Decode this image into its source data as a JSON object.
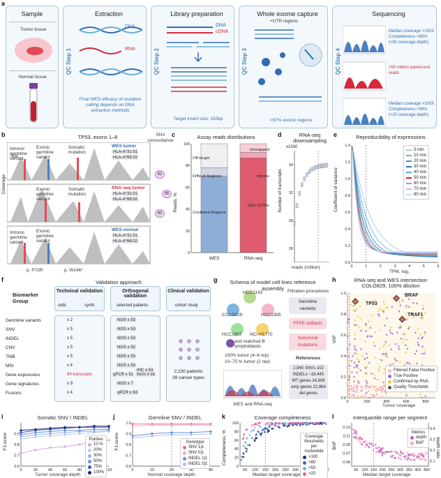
{
  "panel_labels": {
    "a": "a",
    "b": "b",
    "c": "c",
    "d": "d",
    "e": "e",
    "f": "f",
    "g": "g",
    "h": "h",
    "i": "i",
    "j": "j",
    "k": "k",
    "l": "l"
  },
  "a": {
    "sample_title": "Sample",
    "tumor_tissue": "Tumor tissue",
    "normal_tissue": "Normal tissue",
    "steps": [
      {
        "qc": "QC Step 1",
        "title": "Extraction",
        "dna": "DNA",
        "rna": "RNA",
        "note": "Final WES efficacy of mutation calling depends on DNA extraction methods"
      },
      {
        "qc": "QC Step 2",
        "title": "Library preparation",
        "dna": "DNA",
        "cdna": "cDNA",
        "note": "Target insert size: 150bp"
      },
      {
        "qc": "QC Step 3",
        "title": "Whole exome capture",
        "utr": "+UTR regions",
        "note": ">97% exonic regions"
      },
      {
        "qc": "QC Step 4",
        "title": "Sequencing",
        "seq1": "Median coverage >150X Completeness >85% (>60 coverage depth)",
        "seq2": ">50 million paired-end reads",
        "seq3": "Median coverage >100X Completeness >99% (>20 coverage depth)"
      }
    ]
  },
  "b": {
    "title": "TP53, exons 1–8",
    "snv_concordance": "SNV concordance",
    "ylabel": "Coverage",
    "tracks": [
      {
        "name": "WES tumor",
        "hla1": "HLA-A*31:01",
        "hla2": "HLA-A*68:02",
        "y1": "300",
        "y2": "0",
        "lbl_intronic": "Intronic germline variant",
        "lbl_exonic": "Exonic germline variant",
        "lbl_somatic": "Somatic mutation"
      },
      {
        "name": "RNA-seq tumor",
        "hla1": "HLA-A*31:01",
        "hla2": "HLA-A*68:02",
        "y1": "300",
        "y2": "0",
        "lbl_exonic": "Exonic germline variant",
        "lbl_somatic": "Somatic mutation"
      },
      {
        "name": "WES normal",
        "hla1": "HLA-A*31:01",
        "hla2": "HLA-A*68:02",
        "y1": "300",
        "y2": "0",
        "lbl_intronic": "Intronic germline variant",
        "lbl_exonic": "Exonic germline variant"
      }
    ],
    "concordance": [
      "92",
      "95",
      "90"
    ],
    "xlabels": [
      "p. P72R",
      "p. W146*"
    ]
  },
  "c": {
    "title": "Assay reads distributions",
    "ylabel": "Reads, %",
    "yticks": [
      "0",
      "20",
      "40",
      "60",
      "80",
      "100"
    ],
    "categories": [
      "WES",
      "RNA-seq"
    ],
    "wes_labels": [
      "Off-target",
      "Difficult Regions",
      "Confident Regions"
    ],
    "rna_labels": [
      "Unmapped",
      "Introns",
      "CDs +UTRs"
    ]
  },
  "d": {
    "title": "RNA-seq downsampling",
    "ylabel": "Number of transcripts",
    "xlabel": "reads (million)",
    "scale": "x1000",
    "yticks": [
      "28",
      "30",
      "32",
      "34"
    ],
    "xticks": [
      "10",
      "30",
      "50",
      "70"
    ]
  },
  "e": {
    "title": "Reproducibility of expressions",
    "ylabel": "Coefficient of variance",
    "xlabel": "TPM, log₂",
    "yticks": [
      "0.0",
      "0.2",
      "0.4",
      "0.6",
      "0.8",
      "1.0",
      "1.2",
      "1.4"
    ],
    "xticks": [
      "0",
      "1",
      "2",
      "3",
      "4",
      "5",
      "6"
    ],
    "legend": [
      {
        "name": "5 min",
        "color": "#9ecae1"
      },
      {
        "name": "10 min",
        "color": "#6baed6"
      },
      {
        "name": "20 min",
        "color": "#4292c6"
      },
      {
        "name": "30 min",
        "color": "#2171b5"
      },
      {
        "name": "40 min",
        "color": "#41b6c4"
      },
      {
        "name": "50 min",
        "color": "#e31a1c"
      },
      {
        "name": "60 min",
        "color": "#8c9fd8"
      },
      {
        "name": "70 min",
        "color": "#b3c6ef"
      },
      {
        "name": "80 min",
        "color": "#c6dbef"
      }
    ]
  },
  "f": {
    "title": "Validation approach",
    "biomarker": "Biomarker Group",
    "technical": "Technical validation",
    "orthogonal": "Orthogonal validation",
    "clinical": "Clinical validation",
    "cells": "cells",
    "synth": "synth.",
    "selected": "selected patients",
    "cohort": "cohort study",
    "biomarkers": [
      "Germline variants",
      "SNV",
      "INDEL",
      "CNV",
      "TMB",
      "MSI",
      "Gene expression",
      "Gene signatures",
      "Fusions"
    ],
    "tech_counts": [
      "x 2",
      "x 5",
      "x 5",
      "x 5",
      "x 5",
      "x 4",
      "89 transcripts",
      "x 9",
      "x 4"
    ],
    "tech_extra": [
      "x 2",
      "x 5"
    ],
    "ortho": [
      "NGS x 53",
      "NGS x 53",
      "NGS x 53",
      "NGS x 52",
      "NGS x 53",
      "NGS x 53",
      "qPCR x 51",
      "NGS x 55",
      "IHC x 53",
      "NGS x 7",
      "qPCR x 63"
    ],
    "patients": "2,230 patients",
    "cancer_types": "39 cancer types"
  },
  "g": {
    "title": "Schema of model cell lines reference assembly",
    "cells": [
      "HCC1143",
      "COLO829",
      "HCC1395",
      "HCC1937",
      "NCI-H1770"
    ],
    "matched": "and matched B lymphoblasts",
    "tumor1": "100% tumor (4–6 rep)",
    "tumor2": "10–75 % tumor (2 rep)",
    "wes_rna": "WES and RNA-seq",
    "filtration": "Filtration procedures",
    "filters": [
      "Germline variants",
      "FFPE artifacts",
      "Subclonal mutations"
    ],
    "references": "References",
    "refs": "2,940 SNVs 102 INDELs ~18,445 WT genes 24,608 amp genes 22,864 del genes"
  },
  "h": {
    "title": "RNA-seq and WES intersection COLO829, 100% dilution",
    "ylabel": "VAF",
    "xlabel": "Tumor coverage",
    "yticks": [
      "0.0",
      "0.2",
      "0.4",
      "0.6",
      "0.8",
      "1.0"
    ],
    "xticks": [
      "0",
      "200",
      "400",
      "600",
      "800"
    ],
    "genes": [
      "TP53",
      "BRAF",
      "TRAF1"
    ],
    "legend": [
      {
        "name": "Filtered False Positive",
        "color": "#f7b6c8"
      },
      {
        "name": "True Positive",
        "color": "#9a6bd3"
      },
      {
        "name": "Confirmed by RNA",
        "color": "#f4c542"
      },
      {
        "name": "Quality Thresholds",
        "color": "#555555"
      }
    ]
  },
  "i": {
    "title": "Somatic SNV / INDEL",
    "ylabel": "F1-score",
    "xlabel": "Tumor coverage depth",
    "yticks": [
      "0.6",
      "0.7",
      "0.8",
      "0.9"
    ],
    "xticks": [
      "0",
      "20",
      "40",
      "60",
      "80",
      "100",
      "120"
    ],
    "legend_title": "Purities",
    "legend": [
      "10 %",
      "20%",
      "30%",
      "50%",
      "75%",
      "100%"
    ]
  },
  "j": {
    "title": "Germline SNV / INDEL",
    "ylabel": "F1-score",
    "xlabel": "Normal coverage depth",
    "yticks": [
      "0.6",
      "0.7",
      "0.8",
      "0.9",
      "1.0"
    ],
    "xticks": [
      "0",
      "10",
      "20",
      "30",
      "40"
    ],
    "legend_title": "Genotype",
    "legend": [
      "SNV 1|1",
      "SNV 0|1",
      "INDEL 1|1",
      "INDEL 0|1"
    ]
  },
  "k": {
    "title": "Coverage completeness",
    "ylabel": "Completeness, %",
    "xlabel": "Median target coverage",
    "yticks": [
      "0",
      "20",
      "40",
      "60",
      "80",
      "100"
    ],
    "xticks": [
      "50",
      "100",
      "150",
      "200",
      "250",
      "300",
      "350",
      "400",
      "450"
    ],
    "legend_title": "Coverage thresholds per nucleotide",
    "legend": [
      ">100",
      ">80",
      ">50",
      ">20"
    ]
  },
  "l": {
    "title": "Interquantile range per segment",
    "ylabel": "BAF",
    "ylabel2": "depth ratio",
    "xlabel": "Median target coverage",
    "yticks": [
      "0.05",
      "0.07",
      "0.09",
      "0.11",
      "0.13"
    ],
    "yticks2": [
      "0.1",
      "0.2",
      "0.3",
      "0.4"
    ],
    "xticks": [
      "50",
      "100",
      "150",
      "200",
      "250",
      "300",
      "350",
      "400",
      "450"
    ],
    "legend_title": "Metrics",
    "legend": [
      "depth",
      "BAF"
    ]
  },
  "chart_data": [
    {
      "type": "bar",
      "title": "Assay reads distributions",
      "categories": [
        "WES",
        "RNA-seq"
      ],
      "ylabel": "Reads, %",
      "ylim": [
        0,
        100
      ],
      "series": [
        {
          "name": "Confident Regions",
          "values": [
            70,
            0
          ]
        },
        {
          "name": "Difficult Regions",
          "values": [
            8,
            0
          ]
        },
        {
          "name": "Off-target",
          "values": [
            22,
            0
          ]
        },
        {
          "name": "CDs +UTRs",
          "values": [
            0,
            87
          ]
        },
        {
          "name": "Introns",
          "values": [
            0,
            5
          ]
        },
        {
          "name": "Unmapped",
          "values": [
            0,
            8
          ]
        }
      ]
    },
    {
      "type": "line",
      "title": "Reproducibility of expressions",
      "xlabel": "TPM, log₂",
      "ylabel": "Coefficient of variance",
      "xlim": [
        0,
        6
      ],
      "ylim": [
        0,
        1.4
      ]
    },
    {
      "type": "line",
      "title": "Somatic SNV / INDEL",
      "xlabel": "Tumor coverage depth",
      "ylabel": "F1-score",
      "x": [
        0,
        20,
        40,
        60,
        80,
        100,
        120
      ],
      "series": [
        {
          "name": "10 %",
          "values": [
            0.72,
            0.75,
            0.77,
            0.78,
            0.8,
            0.82,
            0.84
          ]
        },
        {
          "name": "20%",
          "values": [
            0.85,
            0.87,
            0.88,
            0.89,
            0.9,
            0.91,
            0.92
          ]
        },
        {
          "name": "30%",
          "values": [
            0.87,
            0.89,
            0.9,
            0.91,
            0.92,
            0.92,
            0.93
          ]
        },
        {
          "name": "50%",
          "values": [
            0.89,
            0.91,
            0.92,
            0.93,
            0.93,
            0.94,
            0.94
          ]
        },
        {
          "name": "75%",
          "values": [
            0.91,
            0.93,
            0.94,
            0.95,
            0.96,
            0.96,
            0.96
          ]
        },
        {
          "name": "100%",
          "values": [
            0.93,
            0.94,
            0.95,
            0.96,
            0.96,
            0.97,
            0.97
          ]
        }
      ]
    },
    {
      "type": "line",
      "title": "Germline SNV / INDEL",
      "xlabel": "Normal coverage depth",
      "ylabel": "F1-score",
      "x": [
        0,
        10,
        20,
        30,
        40
      ],
      "series": [
        {
          "name": "SNV 1|1",
          "values": [
            0.99,
            0.99,
            0.99,
            0.99,
            0.99
          ]
        },
        {
          "name": "SNV 0|1",
          "values": [
            0.97,
            0.98,
            0.98,
            0.98,
            0.98
          ]
        },
        {
          "name": "INDEL 1|1",
          "values": [
            0.88,
            0.9,
            0.91,
            0.91,
            0.92
          ]
        },
        {
          "name": "INDEL 0|1",
          "values": [
            0.86,
            0.88,
            0.89,
            0.89,
            0.9
          ]
        }
      ]
    },
    {
      "type": "scatter",
      "title": "Coverage completeness",
      "xlabel": "Median target coverage",
      "ylabel": "Completeness, %"
    },
    {
      "type": "scatter",
      "title": "Interquantile range per segment",
      "xlabel": "Median target coverage",
      "ylabel": "BAF"
    }
  ]
}
